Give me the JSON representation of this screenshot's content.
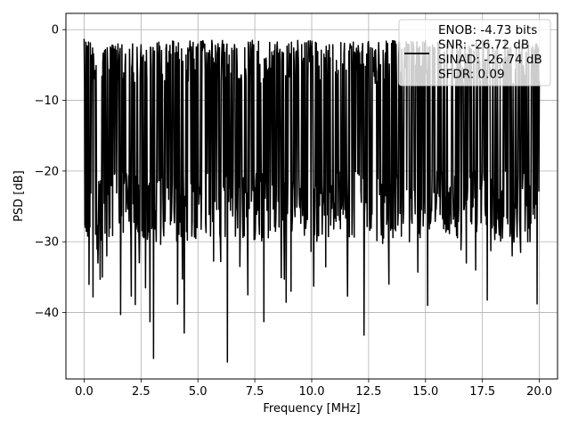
{
  "chart_data": {
    "type": "line",
    "xlabel": "Frequency [MHz]",
    "ylabel": "PSD [dB]",
    "xlim": [
      -0.8,
      20.8
    ],
    "ylim": [
      -49.4,
      2.3
    ],
    "xticks": [
      0,
      2.5,
      5,
      7.5,
      10,
      12.5,
      15,
      17.5,
      20
    ],
    "xtick_labels": [
      "0.0",
      "2.5",
      "5.0",
      "7.5",
      "10.0",
      "12.5",
      "15.0",
      "17.5",
      "20.0"
    ],
    "yticks": [
      -40,
      -30,
      -20,
      -10,
      0
    ],
    "ytick_labels": [
      "−40",
      "−30",
      "−20",
      "−10",
      "0"
    ],
    "grid": true,
    "legend_position": "top-right",
    "legend_lines": [
      "ENOB: -4.73 bits",
      "SNR: -26.72 dB",
      "SINAD: -26.74 dB",
      "SFDR: 0.09"
    ],
    "series": [
      {
        "color": "#000000",
        "x_start": 0,
        "x_end": 20,
        "num_points": 1024,
        "band_upper_db": -5,
        "band_lower_db": -25,
        "peak_db": -1.3,
        "notable_points": [
          {
            "x": 0.0,
            "y": -1.3
          },
          {
            "x": 0.05,
            "y": -28
          },
          {
            "x": 0.6,
            "y": -33
          },
          {
            "x": 0.8,
            "y": -35
          },
          {
            "x": 1.0,
            "y": -32
          },
          {
            "x": 1.6,
            "y": -40.3
          },
          {
            "x": 2.7,
            "y": -36.5
          },
          {
            "x": 2.9,
            "y": -41.3
          },
          {
            "x": 3.05,
            "y": -46.5
          },
          {
            "x": 4.4,
            "y": -42.9
          },
          {
            "x": 6.3,
            "y": -47.0
          },
          {
            "x": 7.9,
            "y": -41.3
          },
          {
            "x": 9.1,
            "y": -37
          },
          {
            "x": 12.3,
            "y": -43.2
          },
          {
            "x": 13.4,
            "y": -36
          },
          {
            "x": 14.3,
            "y": -30
          },
          {
            "x": 15.1,
            "y": -39
          },
          {
            "x": 16.8,
            "y": -33
          },
          {
            "x": 17.2,
            "y": -34
          },
          {
            "x": 18.8,
            "y": -32
          },
          {
            "x": 19.5,
            "y": -30
          }
        ]
      }
    ]
  }
}
